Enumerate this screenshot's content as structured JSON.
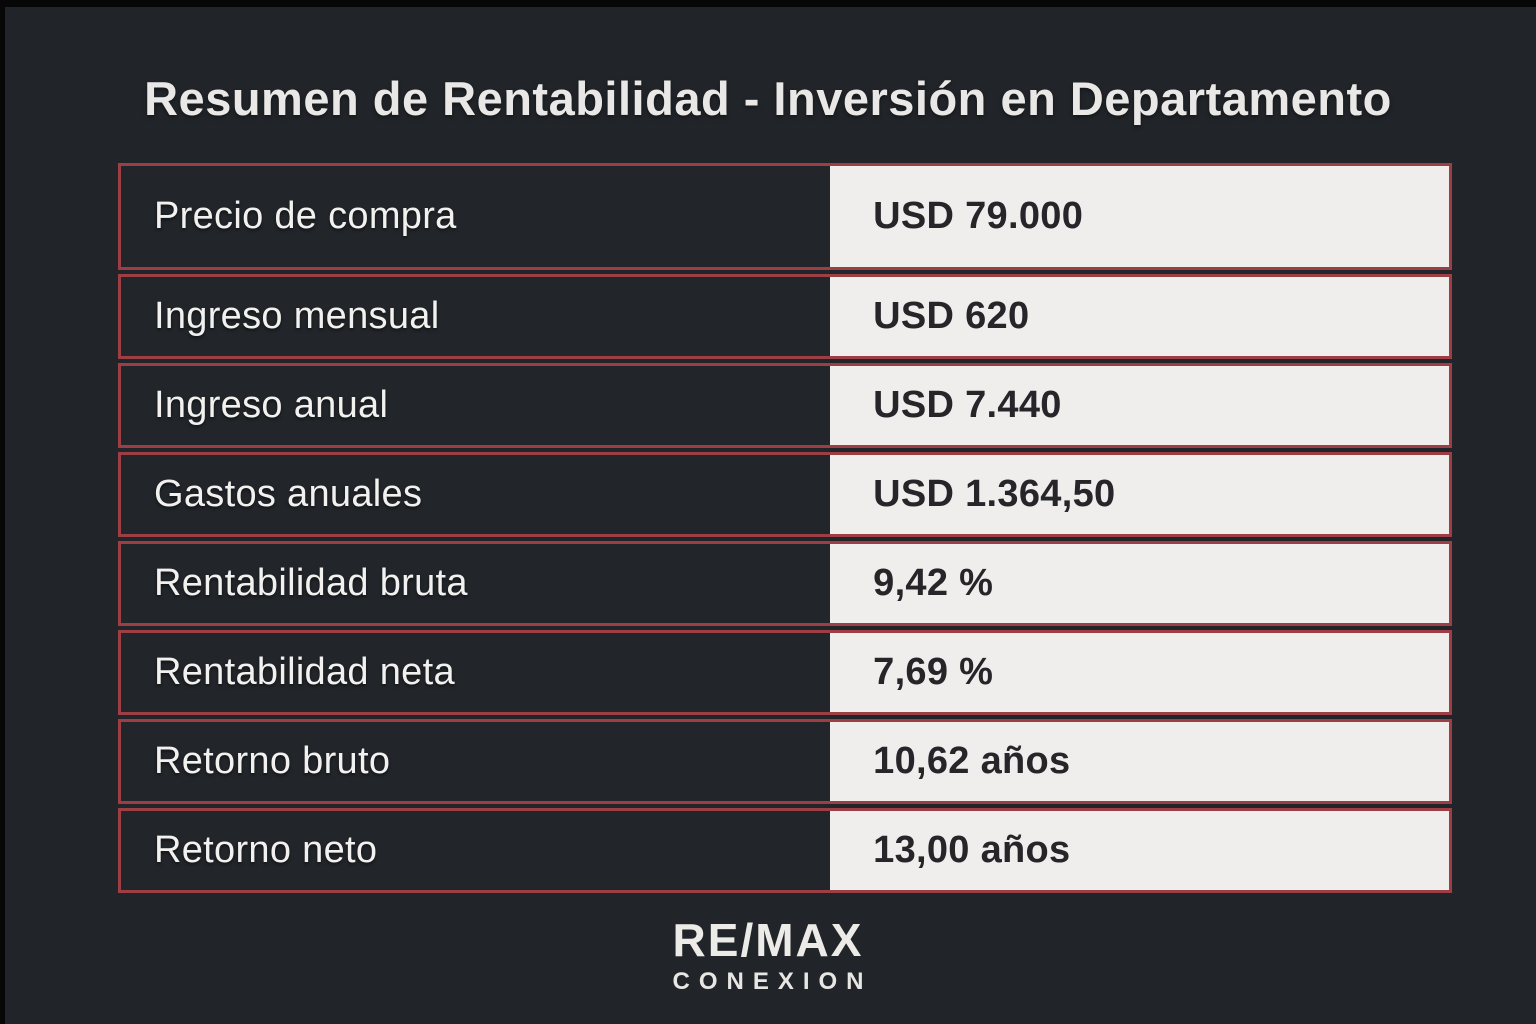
{
  "chart_data": {
    "type": "table",
    "title": "Resumen de Rentabilidad - Inversión en Departamento",
    "rows": [
      {
        "label": "Precio de compra",
        "value": "USD 79.000"
      },
      {
        "label": "Ingreso mensual",
        "value": "USD 620"
      },
      {
        "label": "Ingreso anual",
        "value": "USD 7.440"
      },
      {
        "label": "Gastos anuales",
        "value": "USD 1.364,50"
      },
      {
        "label": "Rentabilidad bruta",
        "value": "9,42 %"
      },
      {
        "label": "Rentabilidad neta",
        "value": "7,69 %"
      },
      {
        "label": "Retorno bruto",
        "value": "10,62 años"
      },
      {
        "label": "Retorno neto",
        "value": "13,00 años"
      }
    ]
  },
  "footer": {
    "brand": "RE/MAX",
    "sub_brand": "CONEXION"
  },
  "colors": {
    "page_background": "#212529",
    "row_border": "#9c3e43",
    "label_cell_background": "#22262a",
    "value_cell_background": "#efeeec",
    "label_text": "#f2f1ef",
    "value_text": "#26262a",
    "title_text": "#e9e8e6",
    "edge_frame": "#070707"
  }
}
